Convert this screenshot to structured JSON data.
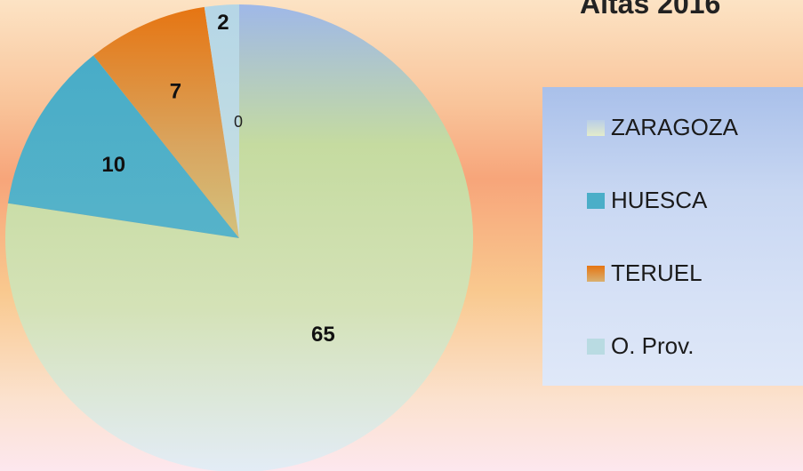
{
  "chart_data": {
    "type": "pie",
    "title": "Altas 2016",
    "categories": [
      "ZARAGOZA",
      "HUESCA",
      "TERUEL",
      "O. Prov."
    ],
    "values": [
      65,
      10,
      7,
      2
    ],
    "extra_labels": [
      "0"
    ],
    "colors": [
      "#cfe0a6",
      "#4baec8",
      "#e2802c",
      "#b9dbe2"
    ],
    "legend_position": "right"
  }
}
